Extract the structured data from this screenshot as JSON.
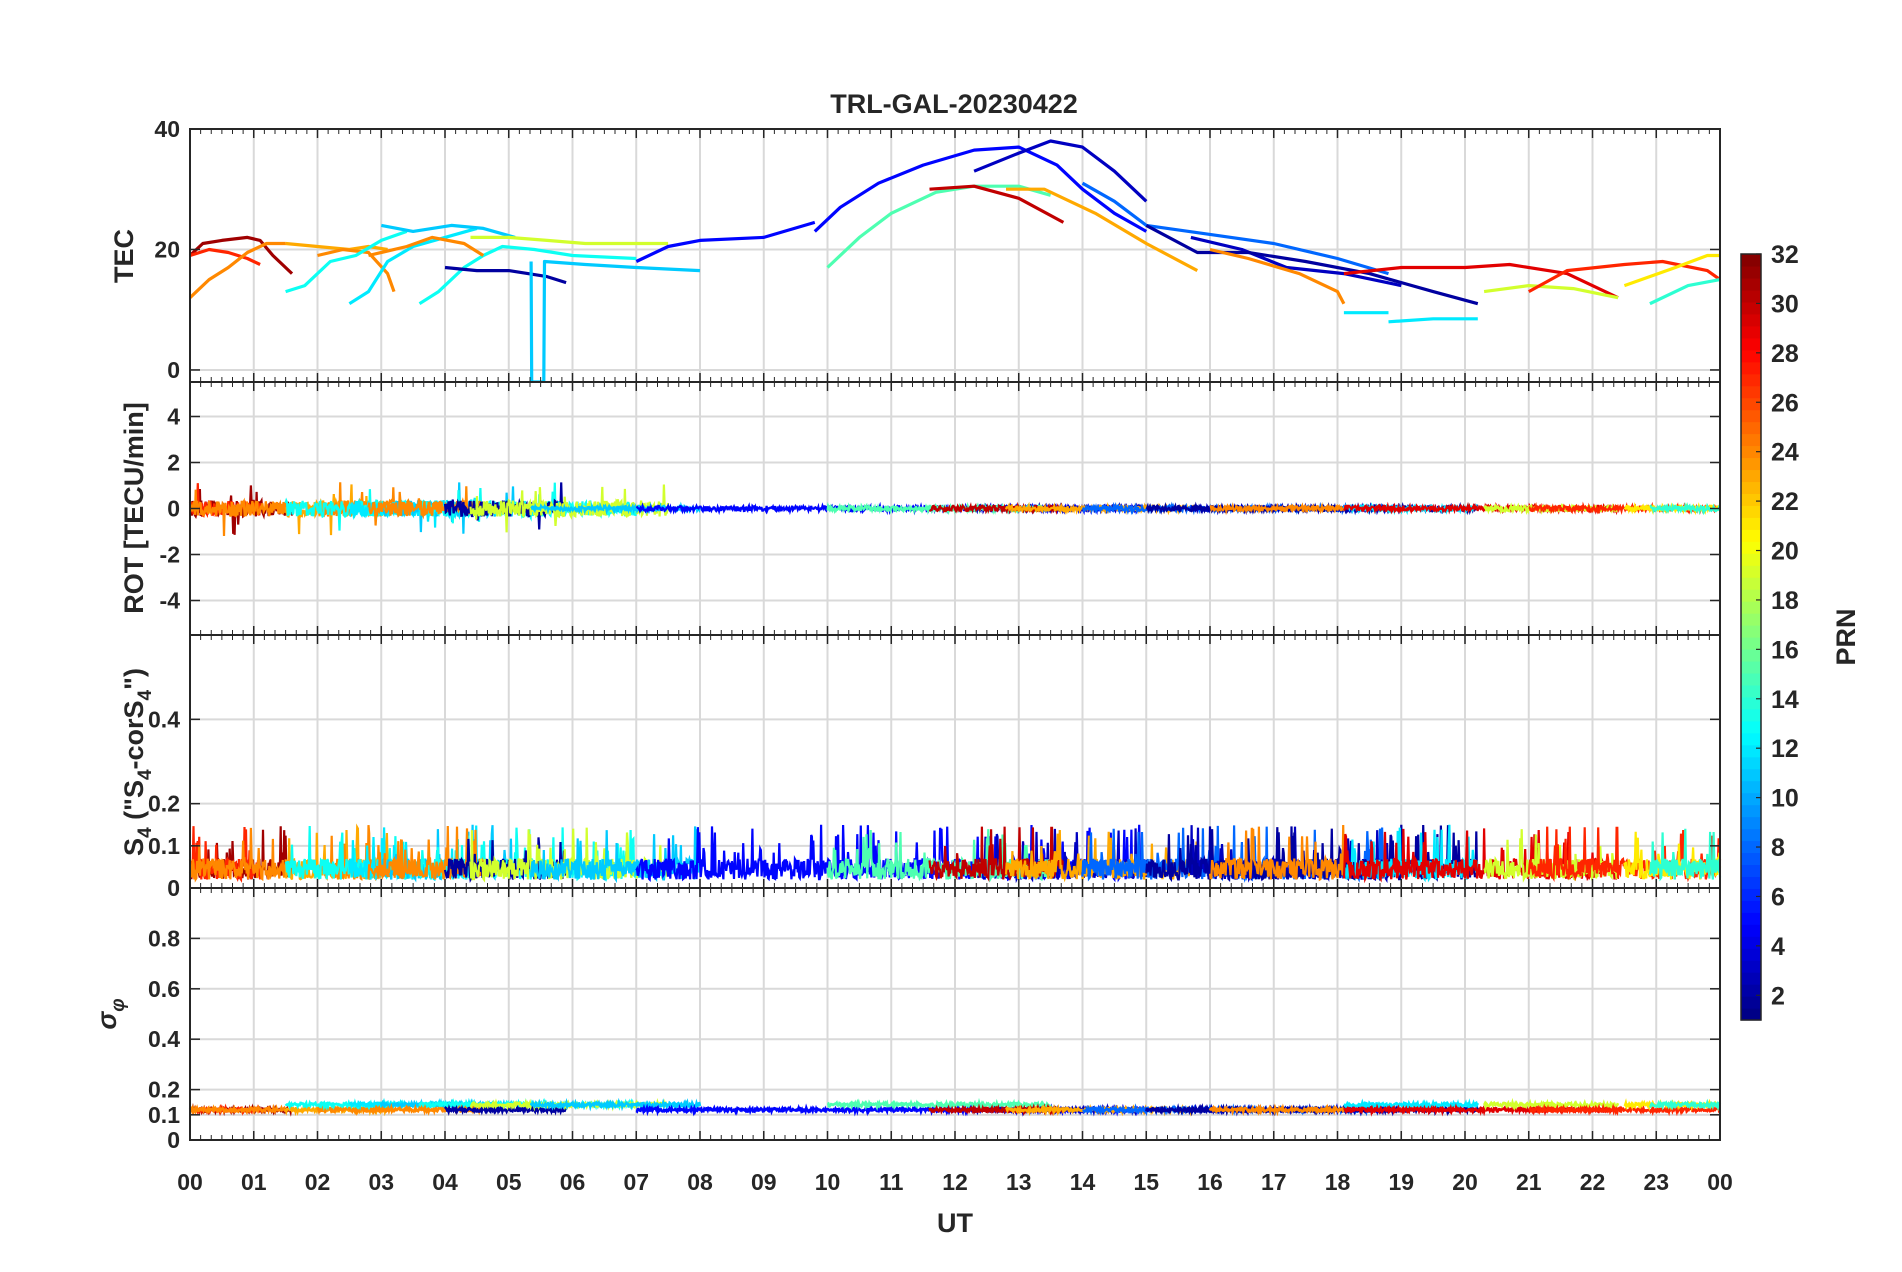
{
  "chart_data": {
    "type": "line",
    "title": "TRL-GAL-20230422",
    "xlabel": "UT",
    "x_tick_labels": [
      "00",
      "01",
      "02",
      "03",
      "04",
      "05",
      "06",
      "07",
      "08",
      "09",
      "10",
      "11",
      "12",
      "13",
      "14",
      "15",
      "16",
      "17",
      "18",
      "19",
      "20",
      "21",
      "22",
      "23",
      "00"
    ],
    "xlim": [
      0,
      24
    ],
    "panels": [
      {
        "id": "tec",
        "ylabel": "TEC",
        "ylim": [
          -2,
          40
        ],
        "y_ticks": [
          0,
          20,
          40
        ],
        "y_tick_labels": [
          "0",
          "20",
          "40"
        ]
      },
      {
        "id": "rot",
        "ylabel": "ROT [TECU/min]",
        "ylim": [
          -5.5,
          5.5
        ],
        "y_ticks": [
          -4,
          -2,
          0,
          2,
          4
        ],
        "y_tick_labels": [
          "-4",
          "-2",
          "0",
          "2",
          "4"
        ]
      },
      {
        "id": "s4",
        "ylabel_main": "S",
        "ylabel_sub": "4",
        "ylabel_rest": " (\"S",
        "ylabel_sub2": "4",
        "ylabel_rest2": "-corS",
        "ylabel_sub3": "4",
        "ylabel_end": "\")",
        "ylim": [
          0,
          0.6
        ],
        "y_ticks": [
          0,
          0.1,
          0.2,
          0.4
        ],
        "y_tick_labels": [
          "0",
          "0.1",
          "0.2",
          "0.4"
        ]
      },
      {
        "id": "sigphi",
        "ylabel_sigma": "σ",
        "ylabel_phi": "φ",
        "ylim": [
          0,
          1
        ],
        "y_ticks": [
          0,
          0.1,
          0.2,
          0.4,
          0.6,
          0.8
        ],
        "y_tick_labels": [
          "0",
          "0.1",
          "0.2",
          "0.4",
          "0.6",
          "0.8"
        ]
      }
    ],
    "colorbar": {
      "label": "PRN",
      "range": [
        1,
        32
      ],
      "ticks": [
        2,
        4,
        6,
        8,
        10,
        12,
        14,
        16,
        18,
        20,
        22,
        24,
        26,
        28,
        30,
        32
      ],
      "tick_labels": [
        "2",
        "4",
        "6",
        "8",
        "10",
        "12",
        "14",
        "16",
        "18",
        "20",
        "22",
        "24",
        "26",
        "28",
        "30",
        "32"
      ],
      "colormap": "jet"
    },
    "tec_series": [
      {
        "prn": 31,
        "points": [
          [
            0,
            19
          ],
          [
            0.2,
            21
          ],
          [
            0.5,
            21.5
          ],
          [
            0.9,
            22
          ],
          [
            1.1,
            21.5
          ],
          [
            1.3,
            19
          ],
          [
            1.6,
            16
          ]
        ]
      },
      {
        "prn": 27,
        "points": [
          [
            0,
            19
          ],
          [
            0.3,
            20
          ],
          [
            0.6,
            19.5
          ],
          [
            0.9,
            18.5
          ],
          [
            1.1,
            17.5
          ]
        ]
      },
      {
        "prn": 24,
        "points": [
          [
            0,
            12
          ],
          [
            0.3,
            15
          ],
          [
            0.6,
            17
          ],
          [
            0.9,
            19.5
          ],
          [
            1.2,
            21
          ],
          [
            1.5,
            21
          ]
        ]
      },
      {
        "prn": 23,
        "points": [
          [
            1.5,
            21
          ],
          [
            2,
            20.5
          ],
          [
            2.5,
            20
          ],
          [
            2.8,
            20.5
          ],
          [
            3.1,
            20
          ]
        ]
      },
      {
        "prn": 24,
        "points": [
          [
            2,
            19
          ],
          [
            2.4,
            20
          ],
          [
            2.8,
            19.5
          ],
          [
            3.1,
            16
          ],
          [
            3.2,
            13
          ]
        ]
      },
      {
        "prn": 13,
        "points": [
          [
            1.5,
            13
          ],
          [
            1.8,
            14
          ],
          [
            2.2,
            18
          ],
          [
            2.6,
            19
          ],
          [
            3,
            21.5
          ],
          [
            3.4,
            23
          ]
        ]
      },
      {
        "prn": 12,
        "points": [
          [
            2.5,
            11
          ],
          [
            2.8,
            13
          ],
          [
            3.1,
            18
          ],
          [
            3.5,
            20.5
          ],
          [
            4,
            22
          ],
          [
            4.5,
            23.5
          ]
        ]
      },
      {
        "prn": 11,
        "points": [
          [
            3,
            24
          ],
          [
            3.5,
            23
          ],
          [
            4.1,
            24
          ],
          [
            4.6,
            23.5
          ],
          [
            5.1,
            22
          ]
        ]
      },
      {
        "prn": 13,
        "points": [
          [
            3.6,
            11
          ],
          [
            3.9,
            13
          ],
          [
            4.3,
            17
          ],
          [
            4.6,
            19
          ],
          [
            4.9,
            20.5
          ],
          [
            5.4,
            20
          ],
          [
            6,
            19
          ],
          [
            7,
            18.5
          ]
        ]
      },
      {
        "prn": 24,
        "points": [
          [
            2.8,
            19
          ],
          [
            3.4,
            20.5
          ],
          [
            3.8,
            22
          ],
          [
            4.3,
            21
          ],
          [
            4.6,
            19
          ]
        ]
      },
      {
        "prn": 2,
        "points": [
          [
            4,
            17
          ],
          [
            4.5,
            16.5
          ],
          [
            5,
            16.5
          ],
          [
            5.6,
            15.5
          ],
          [
            5.9,
            14.5
          ]
        ]
      },
      {
        "prn": 19,
        "points": [
          [
            4.4,
            22
          ],
          [
            5,
            22
          ],
          [
            5.6,
            21.5
          ],
          [
            6.2,
            21
          ],
          [
            7,
            21
          ],
          [
            7.5,
            21
          ]
        ]
      },
      {
        "prn": 11,
        "points": [
          [
            5.35,
            18
          ],
          [
            5.36,
            -2
          ],
          [
            5.55,
            -2
          ],
          [
            5.56,
            18
          ],
          [
            6.2,
            17.5
          ],
          [
            7,
            17
          ],
          [
            8,
            16.5
          ]
        ]
      },
      {
        "prn": 5,
        "points": [
          [
            7,
            18
          ],
          [
            7.5,
            20.5
          ],
          [
            8,
            21.5
          ],
          [
            9,
            22
          ],
          [
            9.8,
            24.5
          ]
        ]
      },
      {
        "prn": 5,
        "points": [
          [
            9.8,
            23
          ],
          [
            10.2,
            27
          ],
          [
            10.8,
            31
          ],
          [
            11.5,
            34
          ],
          [
            12.3,
            36.5
          ],
          [
            13,
            37
          ],
          [
            13.6,
            34
          ],
          [
            14,
            30
          ],
          [
            14.5,
            26
          ],
          [
            15,
            23
          ]
        ]
      },
      {
        "prn": 3,
        "points": [
          [
            12.3,
            33
          ],
          [
            13,
            36
          ],
          [
            13.5,
            38
          ],
          [
            14,
            37
          ],
          [
            14.5,
            33
          ],
          [
            15,
            28
          ]
        ]
      },
      {
        "prn": 15,
        "points": [
          [
            10,
            17
          ],
          [
            10.5,
            22
          ],
          [
            11,
            26
          ],
          [
            11.7,
            29.5
          ],
          [
            12.3,
            30.5
          ],
          [
            13,
            30.5
          ],
          [
            13.5,
            29
          ]
        ]
      },
      {
        "prn": 30,
        "points": [
          [
            11.6,
            30
          ],
          [
            12.3,
            30.5
          ],
          [
            13,
            28.5
          ],
          [
            13.7,
            24.5
          ]
        ]
      },
      {
        "prn": 23,
        "points": [
          [
            12.8,
            30
          ],
          [
            13.4,
            30
          ],
          [
            14.2,
            26
          ],
          [
            15,
            21
          ],
          [
            15.8,
            16.5
          ]
        ]
      },
      {
        "prn": 8,
        "points": [
          [
            14,
            31
          ],
          [
            14.5,
            28
          ],
          [
            15,
            24
          ],
          [
            16,
            22.5
          ],
          [
            17,
            21
          ],
          [
            18,
            18.5
          ],
          [
            18.8,
            16
          ]
        ]
      },
      {
        "prn": 3,
        "points": [
          [
            15.7,
            22
          ],
          [
            16.5,
            20
          ],
          [
            17.2,
            17
          ],
          [
            18.1,
            16
          ],
          [
            19,
            14
          ]
        ]
      },
      {
        "prn": 2,
        "points": [
          [
            15,
            24
          ],
          [
            15.8,
            19.5
          ],
          [
            16.6,
            19.5
          ],
          [
            17.5,
            18
          ],
          [
            18.5,
            16
          ],
          [
            19.5,
            13
          ],
          [
            20.2,
            11
          ]
        ]
      },
      {
        "prn": 24,
        "points": [
          [
            16,
            20
          ],
          [
            16.6,
            18.5
          ],
          [
            17.4,
            16
          ],
          [
            18,
            13
          ],
          [
            18.1,
            11
          ]
        ]
      },
      {
        "prn": 12,
        "points": [
          [
            18.1,
            9.5
          ],
          [
            18.8,
            9.5
          ]
        ]
      },
      {
        "prn": 12,
        "points": [
          [
            18.8,
            8
          ],
          [
            19.5,
            8.5
          ],
          [
            20.2,
            8.5
          ]
        ]
      },
      {
        "prn": 29,
        "points": [
          [
            18.1,
            16
          ],
          [
            19,
            17
          ],
          [
            20,
            17
          ],
          [
            20.7,
            17.5
          ],
          [
            21.6,
            16
          ],
          [
            22.4,
            12
          ]
        ]
      },
      {
        "prn": 19,
        "points": [
          [
            20.3,
            13
          ],
          [
            21,
            14
          ],
          [
            21.7,
            13.5
          ],
          [
            22.4,
            12
          ]
        ]
      },
      {
        "prn": 27,
        "points": [
          [
            21,
            13
          ],
          [
            21.6,
            16.5
          ],
          [
            22.5,
            17.5
          ],
          [
            23.1,
            18
          ],
          [
            23.8,
            16.5
          ],
          [
            24,
            15
          ]
        ]
      },
      {
        "prn": 21,
        "points": [
          [
            22.5,
            14
          ],
          [
            23.3,
            17
          ],
          [
            23.8,
            19
          ],
          [
            24,
            19
          ]
        ]
      },
      {
        "prn": 14,
        "points": [
          [
            22.9,
            11
          ],
          [
            23.5,
            14
          ],
          [
            24,
            15
          ]
        ]
      }
    ]
  }
}
